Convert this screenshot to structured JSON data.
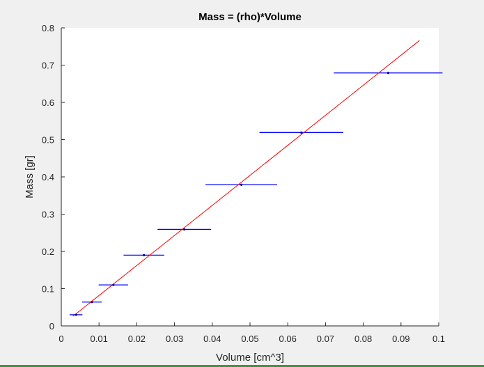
{
  "chart_data": {
    "type": "scatter",
    "title": "Mass = (rho)*Volume",
    "xlabel": "Volume [cm^3]",
    "ylabel": "Mass [gr]",
    "xlim": [
      0,
      0.1
    ],
    "ylim": [
      0,
      0.8
    ],
    "x_ticks": [
      "0",
      "0.01",
      "0.02",
      "0.03",
      "0.04",
      "0.05",
      "0.06",
      "0.07",
      "0.08",
      "0.09",
      "0.1"
    ],
    "y_ticks": [
      "0",
      "0.1",
      "0.2",
      "0.3",
      "0.4",
      "0.5",
      "0.6",
      "0.7",
      "0.8"
    ],
    "grid": false,
    "series": [
      {
        "type": "errorbar-horizontal",
        "color": "#0000ff",
        "points": [
          {
            "x": 0.0039,
            "y": 0.03,
            "xerr": 0.0017
          },
          {
            "x": 0.0081,
            "y": 0.064,
            "xerr": 0.0026
          },
          {
            "x": 0.0138,
            "y": 0.11,
            "xerr": 0.0039
          },
          {
            "x": 0.0219,
            "y": 0.19,
            "xerr": 0.0054
          },
          {
            "x": 0.0326,
            "y": 0.259,
            "xerr": 0.0071
          },
          {
            "x": 0.0477,
            "y": 0.379,
            "xerr": 0.0095
          },
          {
            "x": 0.0636,
            "y": 0.519,
            "xerr": 0.0111
          },
          {
            "x": 0.0866,
            "y": 0.679,
            "xerr": 0.0144
          }
        ]
      },
      {
        "type": "line",
        "color": "#ff0000",
        "x": [
          0.0031,
          0.0949
        ],
        "y": [
          0.026,
          0.766
        ]
      }
    ]
  }
}
